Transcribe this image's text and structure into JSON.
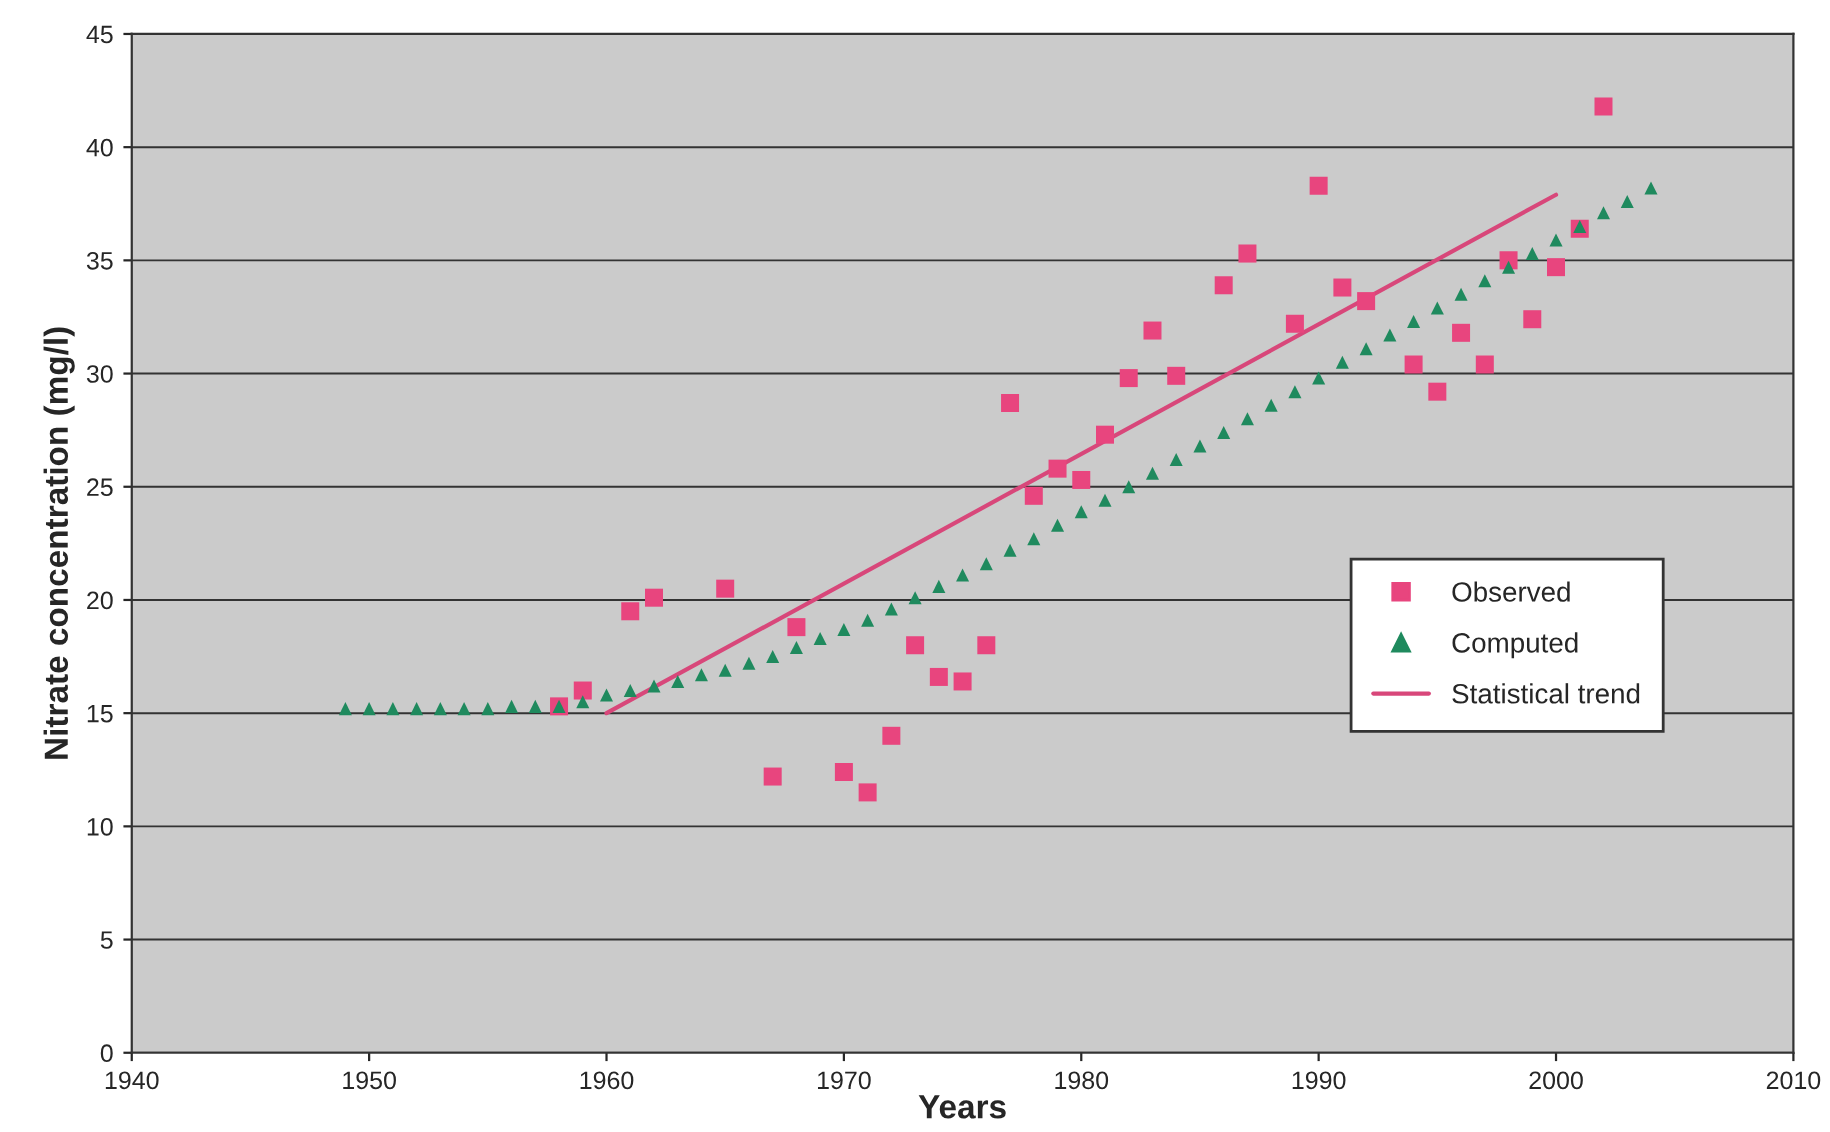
{
  "chart_data": {
    "type": "scatter",
    "xlabel": "Years",
    "ylabel": "Nitrate concentration (mg/l)",
    "xlim": [
      1940,
      2010
    ],
    "xticks": [
      1940,
      1950,
      1960,
      1970,
      1980,
      1990,
      2000,
      2010
    ],
    "ylim": [
      0,
      45
    ],
    "yticks": [
      0,
      5,
      10,
      15,
      20,
      25,
      30,
      35,
      40,
      45
    ],
    "grid": "y",
    "legend": "right",
    "series": [
      {
        "name": "Observed",
        "marker": "square",
        "color": "#e8457e",
        "x": [
          1958,
          1959,
          1961,
          1962,
          1965,
          1967,
          1968,
          1970,
          1971,
          1972,
          1973,
          1974,
          1975,
          1976,
          1977,
          1978,
          1979,
          1980,
          1981,
          1982,
          1983,
          1984,
          1986,
          1987,
          1989,
          1990,
          1991,
          1992,
          1994,
          1995,
          1996,
          1997,
          1998,
          1999,
          2000,
          2001,
          2002
        ],
        "values": [
          15.3,
          16.0,
          19.5,
          20.1,
          20.5,
          12.2,
          18.8,
          12.4,
          11.5,
          14.0,
          18.0,
          16.6,
          16.4,
          18.0,
          28.7,
          24.6,
          25.8,
          25.3,
          27.3,
          29.8,
          31.9,
          29.9,
          33.9,
          35.3,
          32.2,
          38.3,
          33.8,
          33.2,
          30.4,
          29.2,
          31.8,
          30.4,
          35.0,
          32.4,
          34.7,
          36.4,
          41.8
        ]
      },
      {
        "name": "Computed",
        "marker": "triangle",
        "color": "#1f8a5e",
        "x": [
          1949,
          1950,
          1951,
          1952,
          1953,
          1954,
          1955,
          1956,
          1957,
          1958,
          1959,
          1960,
          1961,
          1962,
          1963,
          1964,
          1965,
          1966,
          1967,
          1968,
          1969,
          1970,
          1971,
          1972,
          1973,
          1974,
          1975,
          1976,
          1977,
          1978,
          1979,
          1980,
          1981,
          1982,
          1983,
          1984,
          1985,
          1986,
          1987,
          1988,
          1989,
          1990,
          1991,
          1992,
          1993,
          1994,
          1995,
          1996,
          1997,
          1998,
          1999,
          2000,
          2001,
          2002,
          2003,
          2004
        ],
        "values": [
          15.2,
          15.2,
          15.2,
          15.2,
          15.2,
          15.2,
          15.2,
          15.3,
          15.3,
          15.3,
          15.5,
          15.8,
          16.0,
          16.2,
          16.4,
          16.7,
          16.9,
          17.2,
          17.5,
          17.9,
          18.3,
          18.7,
          19.1,
          19.6,
          20.1,
          20.6,
          21.1,
          21.6,
          22.2,
          22.7,
          23.3,
          23.9,
          24.4,
          25.0,
          25.6,
          26.2,
          26.8,
          27.4,
          28.0,
          28.6,
          29.2,
          29.8,
          30.5,
          31.1,
          31.7,
          32.3,
          32.9,
          33.5,
          34.1,
          34.7,
          35.3,
          35.9,
          36.5,
          37.1,
          37.6,
          38.2
        ]
      },
      {
        "name": "Statistical trend",
        "type": "line",
        "line_style": "solid",
        "color": "#d8477a",
        "x": [
          1960,
          2000
        ],
        "values": [
          15.0,
          37.9
        ]
      }
    ]
  }
}
